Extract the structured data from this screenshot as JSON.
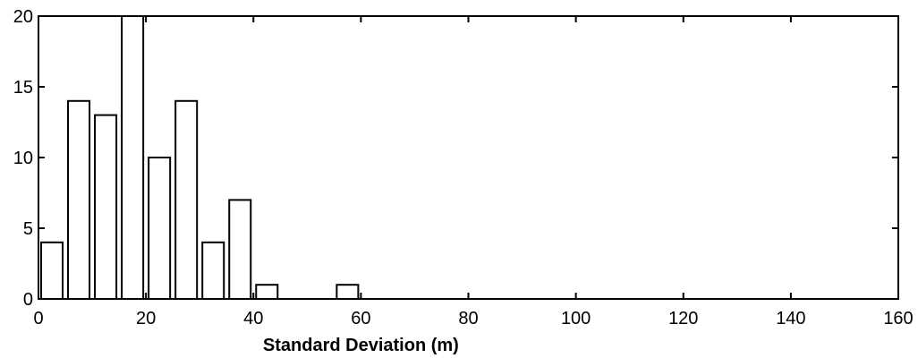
{
  "chart_data": {
    "type": "bar",
    "title": "",
    "xlabel": "Standard Deviation (m)",
    "ylabel": "",
    "xlim": [
      0,
      160
    ],
    "ylim": [
      0,
      20
    ],
    "xticks": [
      0,
      20,
      40,
      60,
      80,
      100,
      120,
      140,
      160
    ],
    "yticks": [
      0,
      5,
      10,
      15,
      20
    ],
    "grid": false,
    "bars": [
      {
        "center": 2.5,
        "value": 4
      },
      {
        "center": 7.5,
        "value": 14
      },
      {
        "center": 12.5,
        "value": 13
      },
      {
        "center": 17.5,
        "value": 20
      },
      {
        "center": 22.5,
        "value": 10
      },
      {
        "center": 27.5,
        "value": 14
      },
      {
        "center": 32.5,
        "value": 4
      },
      {
        "center": 37.5,
        "value": 7
      },
      {
        "center": 42.5,
        "value": 1
      },
      {
        "center": 57.5,
        "value": 1
      }
    ],
    "bar_width": 4,
    "colors": {
      "bar_fill": "#ffffff",
      "stroke": "#000000"
    }
  }
}
